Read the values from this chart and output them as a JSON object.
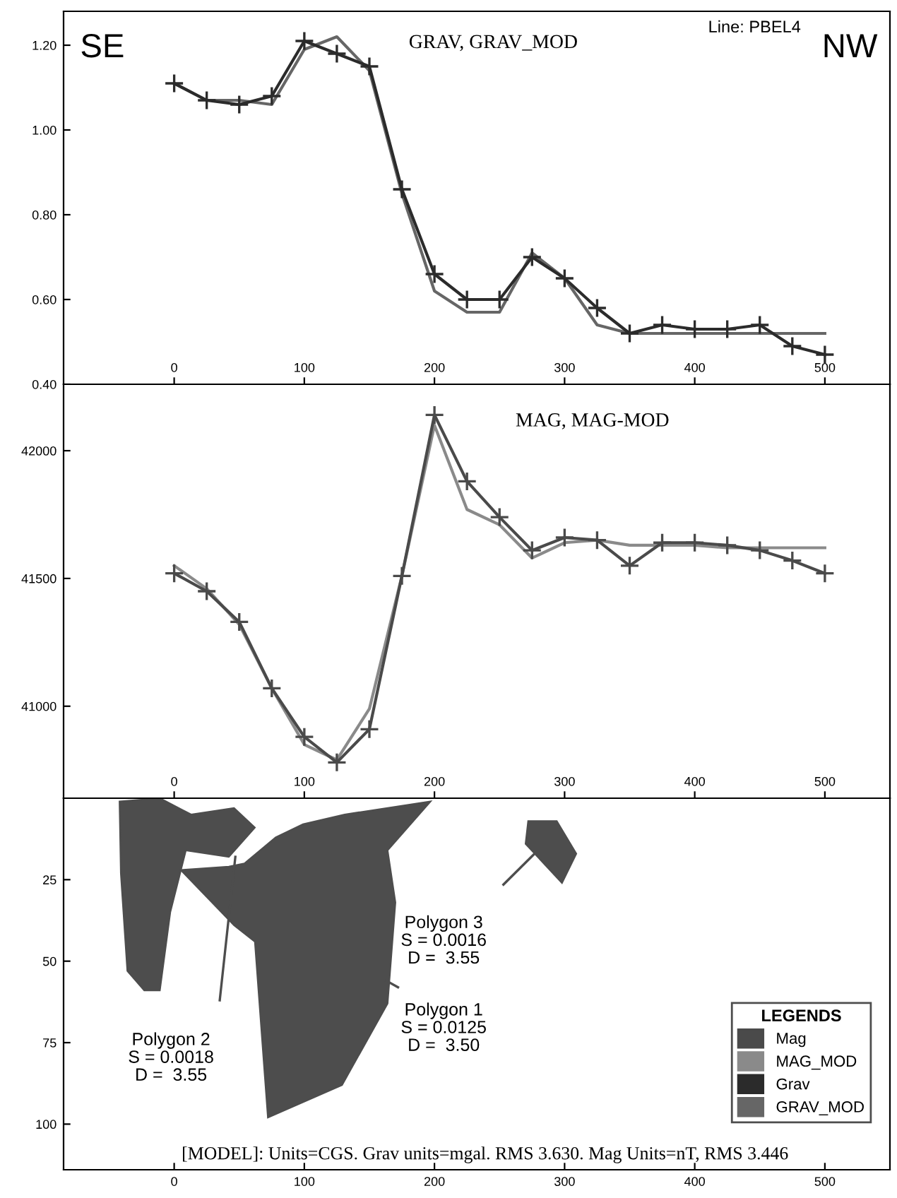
{
  "chart_data": [
    {
      "type": "line",
      "title": "GRAV, GRAV_MOD",
      "x": [
        0,
        25,
        50,
        75,
        100,
        125,
        150,
        175,
        200,
        225,
        250,
        275,
        300,
        325,
        350,
        375,
        400,
        425,
        450,
        475,
        500
      ],
      "series": [
        {
          "name": "Grav",
          "color": "#2b2b2b",
          "marker": "cross",
          "values": [
            1.11,
            1.07,
            1.06,
            1.08,
            1.21,
            1.18,
            1.15,
            0.86,
            0.66,
            0.6,
            0.6,
            0.7,
            0.65,
            0.58,
            0.52,
            0.54,
            0.53,
            0.53,
            0.54,
            0.49,
            0.47
          ]
        },
        {
          "name": "GRAV_MOD",
          "color": "#666666",
          "marker": "none",
          "values": [
            1.11,
            1.07,
            1.07,
            1.06,
            1.19,
            1.22,
            1.14,
            0.85,
            0.62,
            0.57,
            0.57,
            0.71,
            0.65,
            0.54,
            0.52,
            0.52,
            0.52,
            0.52,
            0.52,
            0.52,
            0.52
          ]
        }
      ],
      "annotations": [
        "SE",
        "Line: PBEL4",
        "NW"
      ],
      "legend": "bottom right",
      "xlim": [
        -85,
        550
      ],
      "xticks": [
        0,
        100,
        200,
        300,
        400,
        500
      ],
      "ylim": [
        0.4,
        1.28
      ],
      "yticks": [
        {
          "value": 0.4,
          "label": "0.40"
        },
        {
          "value": 0.6,
          "label": "0.60"
        },
        {
          "value": 0.8,
          "label": "0.80"
        },
        {
          "value": 1.0,
          "label": "1.00"
        },
        {
          "value": 1.2,
          "label": "1.20"
        }
      ],
      "line_style": "solid"
    },
    {
      "type": "line",
      "title": "MAG, MAG-MOD",
      "legend": "bottom right",
      "legend_title": "LEGENDS",
      "x": [
        0,
        25,
        50,
        75,
        100,
        125,
        150,
        175,
        200,
        225,
        250,
        275,
        300,
        325,
        350,
        375,
        400,
        425,
        450,
        475,
        500
      ],
      "series": [
        {
          "name": "Mag",
          "color": "#4a4a4a",
          "marker": "cross",
          "values": [
            41520,
            41450,
            41330,
            41070,
            40880,
            40780,
            40910,
            41510,
            42140,
            41880,
            41740,
            41610,
            41660,
            41650,
            41550,
            41640,
            41640,
            41630,
            41610,
            41570,
            41520
          ]
        },
        {
          "name": "MAG_MOD",
          "color": "#8a8a8a",
          "marker": "none",
          "values": [
            41550,
            41460,
            41320,
            41070,
            40850,
            40790,
            40990,
            41510,
            42100,
            41770,
            41710,
            41580,
            41640,
            41650,
            41630,
            41630,
            41630,
            41620,
            41620,
            41620,
            41620
          ]
        }
      ],
      "xlim": [
        -85,
        550
      ],
      "xticks": [
        0,
        100,
        200,
        300,
        400,
        500
      ],
      "ylim": [
        40640,
        42260
      ],
      "yticks": [
        41000,
        41500,
        42000
      ],
      "line_style": "solid"
    },
    {
      "type": "area",
      "series": [
        {
          "color": "#4d4d4d",
          "x": [
            -42,
            -11,
            13,
            46,
            62,
            42,
            9,
            -3,
            -11,
            -23,
            -36,
            -41
          ],
          "values": [
            1,
            0,
            5,
            3,
            9,
            18,
            16,
            35,
            59,
            59,
            53,
            23
          ]
        },
        {
          "color": "#4d4d4d",
          "x": [
            5,
            42,
            54,
            78,
            99,
            131,
            197,
            164,
            170,
            164,
            129,
            72,
            62,
            46
          ],
          "values": [
            22,
            21,
            20,
            12,
            8,
            5,
            1,
            16,
            32,
            63,
            88,
            98,
            44,
            39
          ]
        },
        {
          "color": "#4d4d4d",
          "x": [
            272,
            294,
            309,
            298,
            270
          ],
          "values": [
            7,
            7,
            17,
            26,
            14
          ]
        }
      ],
      "annotations": [
        "Polygon 2\nS = 0.0018\nD =  3.55",
        "Polygon 3\nS = 0.0016\nD =  3.55",
        "Polygon 1\nS = 0.0125\nD =  3.50",
        "[MODEL]: Units=CGS. Grav units=mgal. RMS 3.630. Mag Units=nT, RMS 3.446"
      ],
      "xlim": [
        -85,
        550
      ],
      "xticks": [
        0,
        100,
        200,
        300,
        400,
        500
      ],
      "ylim": [
        114,
        0
      ],
      "yticks": [
        25,
        50,
        75,
        100
      ]
    }
  ]
}
